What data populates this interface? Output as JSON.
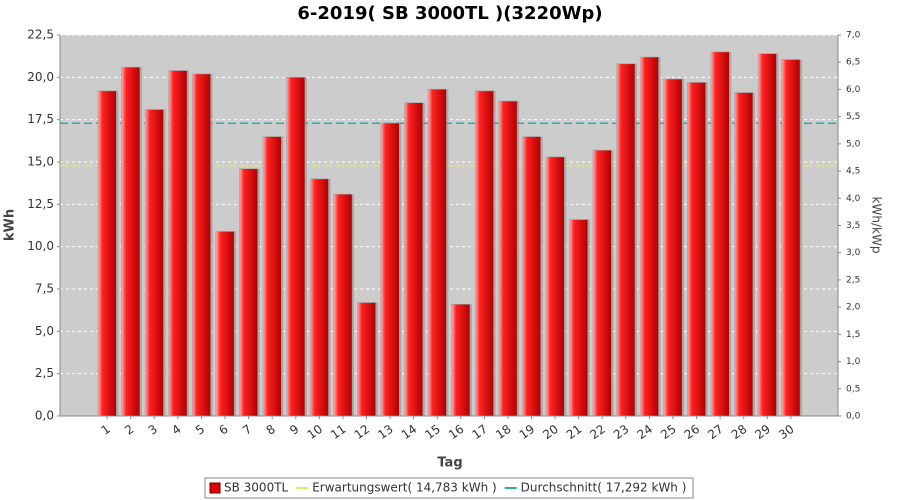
{
  "chart_data": {
    "type": "bar",
    "title": "6-2019( SB 3000TL )(3220Wp)",
    "x_label": "Tag",
    "y_label": "kWh",
    "y2_label": "kWh/kWp",
    "categories": [
      "1",
      "2",
      "3",
      "4",
      "5",
      "6",
      "7",
      "8",
      "9",
      "10",
      "11",
      "12",
      "13",
      "14",
      "15",
      "16",
      "17",
      "18",
      "19",
      "20",
      "21",
      "22",
      "23",
      "24",
      "25",
      "26",
      "27",
      "28",
      "29",
      "30"
    ],
    "series": [
      {
        "name": "SB 3000TL",
        "color": "#e00000",
        "values": [
          19.2,
          20.6,
          18.1,
          20.4,
          20.2,
          10.9,
          14.6,
          16.5,
          20.0,
          14.0,
          13.1,
          6.7,
          17.3,
          18.5,
          19.3,
          6.6,
          19.2,
          18.6,
          16.5,
          15.3,
          11.6,
          15.7,
          20.8,
          21.2,
          19.9,
          19.7,
          21.5,
          19.1,
          21.4,
          21.05
        ]
      }
    ],
    "reference_lines": [
      {
        "name": "Erwartungswert( 14,783 kWh )",
        "value": 14.783,
        "color": "#e8e85a"
      },
      {
        "name": "Durchschnitt( 17,292 kWh )",
        "value": 17.292,
        "color": "#20b0b0"
      }
    ],
    "ylim": [
      0,
      22.5
    ],
    "yticks": [
      {
        "value": 0,
        "label": "0,0"
      },
      {
        "value": 2.5,
        "label": "2,5"
      },
      {
        "value": 5,
        "label": "5,0"
      },
      {
        "value": 7.5,
        "label": "7,5"
      },
      {
        "value": 10,
        "label": "10,0"
      },
      {
        "value": 12.5,
        "label": "12,5"
      },
      {
        "value": 15,
        "label": "15,0"
      },
      {
        "value": 17.5,
        "label": "17,5"
      },
      {
        "value": 20,
        "label": "20,0"
      },
      {
        "value": 22.5,
        "label": "22,5"
      }
    ],
    "y2lim": [
      0,
      7
    ],
    "y2ticks": [
      {
        "value": 0,
        "label": "0,0"
      },
      {
        "value": 0.5,
        "label": "0,5"
      },
      {
        "value": 1,
        "label": "1,0"
      },
      {
        "value": 1.5,
        "label": "1,5"
      },
      {
        "value": 2,
        "label": "2,0"
      },
      {
        "value": 2.5,
        "label": "2,5"
      },
      {
        "value": 3,
        "label": "3,0"
      },
      {
        "value": 3.5,
        "label": "3,5"
      },
      {
        "value": 4,
        "label": "4,0"
      },
      {
        "value": 4.5,
        "label": "4,5"
      },
      {
        "value": 5,
        "label": "5,0"
      },
      {
        "value": 5.5,
        "label": "5,5"
      },
      {
        "value": 6,
        "label": "6,0"
      },
      {
        "value": 6.5,
        "label": "6,5"
      },
      {
        "value": 7,
        "label": "7,0"
      }
    ],
    "grid": true,
    "legend": "bottom"
  }
}
